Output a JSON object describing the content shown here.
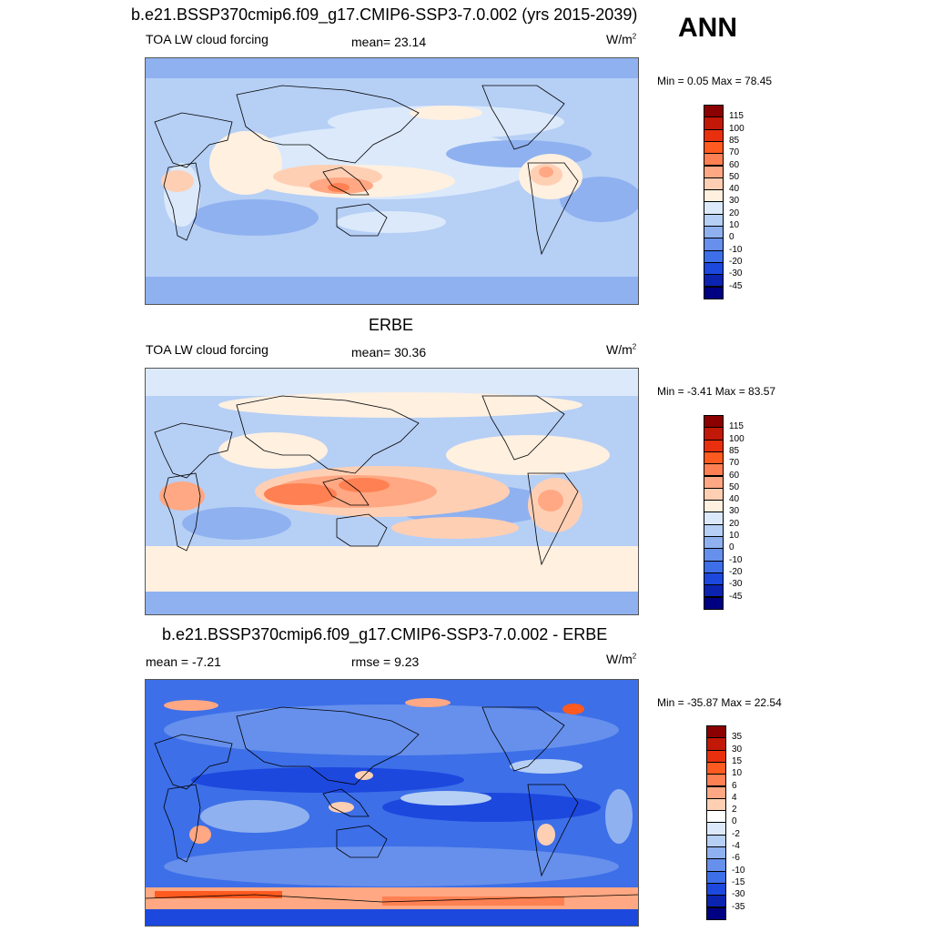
{
  "season": "ANN",
  "panels": [
    {
      "title": "b.e21.BSSP370cmip6.f09_g17.CMIP6-SSP3-7.0.002 (yrs 2015-2039)",
      "left": "TOA LW cloud forcing",
      "center": "mean=  23.14",
      "units": "W/m",
      "units_sup": "2",
      "minmax": "Min =   0.05 Max =  78.45",
      "colorbar": {
        "labels": [
          "115",
          "100",
          "85",
          "70",
          "60",
          "50",
          "40",
          "30",
          "20",
          "10",
          "0",
          "-10",
          "-20",
          "-30",
          "-45"
        ],
        "colors": [
          "#8b0000",
          "#c21807",
          "#e8300e",
          "#ff5a1f",
          "#ff8052",
          "#ffa883",
          "#ffcfb4",
          "#fff0e0",
          "#dbe9fb",
          "#b6cff5",
          "#8fb1f0",
          "#6690ec",
          "#3d6fe8",
          "#1c48de",
          "#0a24b0",
          "#000082"
        ]
      }
    },
    {
      "title": "ERBE",
      "left": "TOA LW cloud forcing",
      "center": "mean=  30.36",
      "units": "W/m",
      "units_sup": "2",
      "minmax": "Min =  -3.41 Max =  83.57",
      "colorbar": {
        "labels": [
          "115",
          "100",
          "85",
          "70",
          "60",
          "50",
          "40",
          "30",
          "20",
          "10",
          "0",
          "-10",
          "-20",
          "-30",
          "-45"
        ],
        "colors": [
          "#8b0000",
          "#c21807",
          "#e8300e",
          "#ff5a1f",
          "#ff8052",
          "#ffa883",
          "#ffcfb4",
          "#fff0e0",
          "#dbe9fb",
          "#b6cff5",
          "#8fb1f0",
          "#6690ec",
          "#3d6fe8",
          "#1c48de",
          "#0a24b0",
          "#000082"
        ]
      }
    },
    {
      "title": "b.e21.BSSP370cmip6.f09_g17.CMIP6-SSP3-7.0.002 - ERBE",
      "left": "mean =  -7.21",
      "center": "rmse =   9.23",
      "units": "W/m",
      "units_sup": "2",
      "minmax": "Min = -35.87 Max =  22.54",
      "colorbar": {
        "labels": [
          "35",
          "30",
          "15",
          "10",
          "6",
          "4",
          "2",
          "0",
          "-2",
          "-4",
          "-6",
          "-10",
          "-15",
          "-30",
          "-35"
        ],
        "colors": [
          "#8b0000",
          "#c21807",
          "#e8300e",
          "#ff5a1f",
          "#ff8052",
          "#ffa883",
          "#ffcfb4",
          "#ffffff",
          "#dbe9fb",
          "#b6cff5",
          "#8fb1f0",
          "#6690ec",
          "#3d6fe8",
          "#1c48de",
          "#0a24b0",
          "#000082"
        ]
      }
    }
  ]
}
